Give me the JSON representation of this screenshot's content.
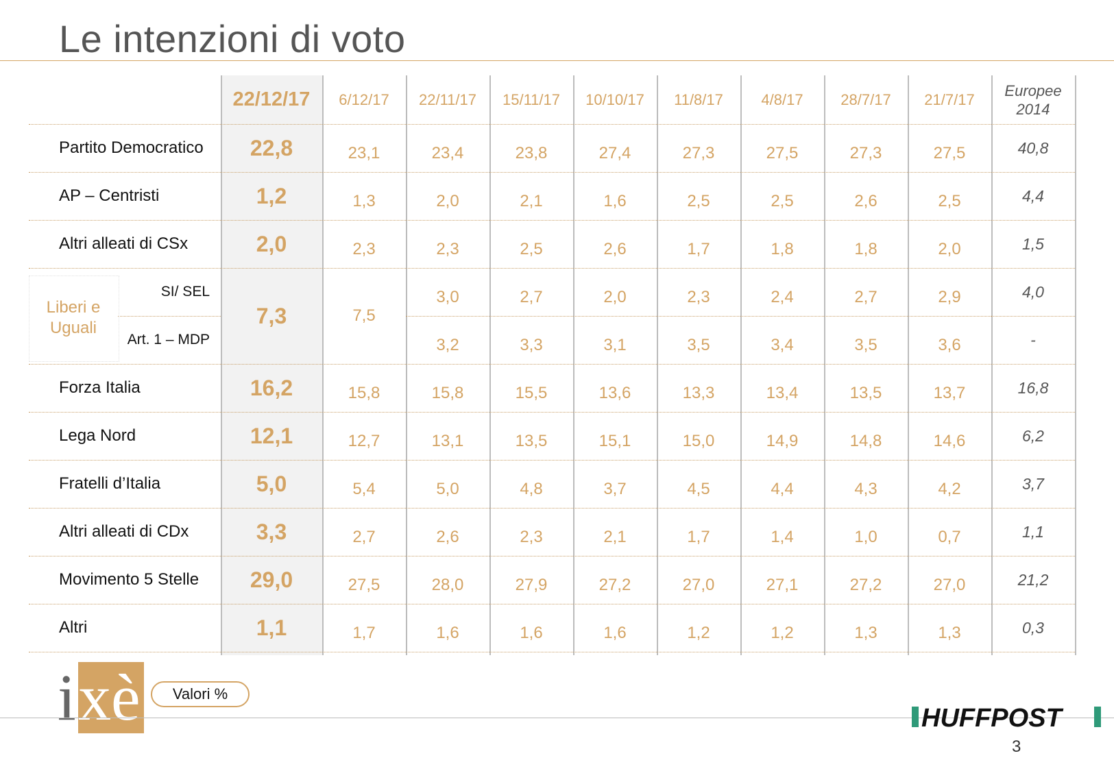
{
  "title": "Le intenzioni di voto",
  "header": {
    "main_date": "22/12/17",
    "dates": [
      "6/12/17",
      "22/11/17",
      "15/11/17",
      "10/10/17",
      "11/8/17",
      "4/8/17",
      "28/7/17",
      "21/7/17"
    ],
    "europee": [
      "Europee",
      "2014"
    ]
  },
  "rows": [
    {
      "label": "Partito Democratico",
      "main": "22,8",
      "values": [
        "23,1",
        "23,4",
        "23,8",
        "27,4",
        "27,3",
        "27,5",
        "27,3",
        "27,5"
      ],
      "europee": "40,8"
    },
    {
      "label": "AP – Centristi",
      "main": "1,2",
      "values": [
        "1,3",
        "2,0",
        "2,1",
        "1,6",
        "2,5",
        "2,5",
        "2,6",
        "2,5"
      ],
      "europee": "4,4"
    },
    {
      "label": "Altri alleati di  CSx",
      "main": "2,0",
      "values": [
        "2,3",
        "2,3",
        "2,5",
        "2,6",
        "1,7",
        "1,8",
        "1,8",
        "2,0"
      ],
      "europee": "1,5"
    }
  ],
  "group": {
    "label_line1": "Liberi e",
    "label_line2": "Uguali",
    "main": "7,3",
    "combined_6_12": "7,5",
    "sub": [
      {
        "label": "SI/ SEL",
        "values": [
          "3,0",
          "2,7",
          "2,0",
          "2,3",
          "2,4",
          "2,7",
          "2,9"
        ],
        "europee": "4,0"
      },
      {
        "label": "Art. 1 – MDP",
        "values": [
          "3,2",
          "3,3",
          "3,1",
          "3,5",
          "3,4",
          "3,5",
          "3,6"
        ],
        "europee": "-"
      }
    ]
  },
  "rows2": [
    {
      "label": "Forza Italia",
      "main": "16,2",
      "values": [
        "15,8",
        "15,8",
        "15,5",
        "13,6",
        "13,3",
        "13,4",
        "13,5",
        "13,7"
      ],
      "europee": "16,8"
    },
    {
      "label": "Lega Nord",
      "main": "12,1",
      "values": [
        "12,7",
        "13,1",
        "13,5",
        "15,1",
        "15,0",
        "14,9",
        "14,8",
        "14,6"
      ],
      "europee": "6,2"
    },
    {
      "label": "Fratelli d’Italia",
      "main": "5,0",
      "values": [
        "5,4",
        "5,0",
        "4,8",
        "3,7",
        "4,5",
        "4,4",
        "4,3",
        "4,2"
      ],
      "europee": "3,7"
    },
    {
      "label": "Altri alleati di CDx",
      "main": "3,3",
      "values": [
        "2,7",
        "2,6",
        "2,3",
        "2,1",
        "1,7",
        "1,4",
        "1,0",
        "0,7"
      ],
      "europee": "1,1"
    },
    {
      "label": "Movimento 5 Stelle",
      "main": "29,0",
      "values": [
        "27,5",
        "28,0",
        "27,9",
        "27,2",
        "27,0",
        "27,1",
        "27,2",
        "27,0"
      ],
      "europee": "21,2"
    },
    {
      "label": "Altri",
      "main": "1,1",
      "values": [
        "1,7",
        "1,6",
        "1,6",
        "1,6",
        "1,2",
        "1,2",
        "1,3",
        "1,3"
      ],
      "europee": "0,3"
    }
  ],
  "footer": {
    "logo_text": "ixè",
    "badge": "Valori %",
    "brand": "HUFFPOST",
    "page_number": "3"
  },
  "colors": {
    "accent": "#d4a464",
    "title": "#555555",
    "band": "#f2f2f2"
  }
}
